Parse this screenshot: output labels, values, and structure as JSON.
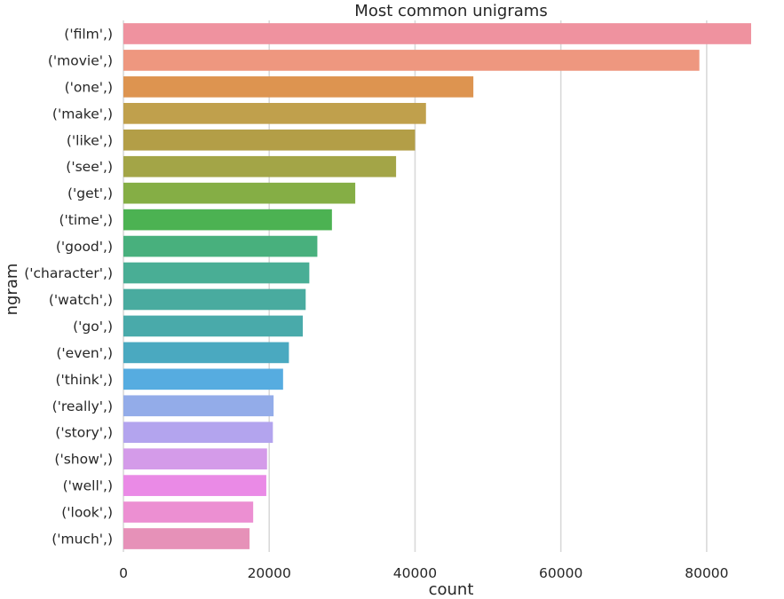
{
  "chart_data": {
    "type": "bar",
    "orientation": "horizontal",
    "title": "Most common unigrams",
    "xlabel": "count",
    "ylabel": "ngram",
    "xlim": [
      0,
      90000
    ],
    "xticks": [
      "0",
      "20000",
      "40000",
      "60000",
      "80000"
    ],
    "grid": true,
    "categories": [
      "('film',)",
      "('movie',)",
      "('one',)",
      "('make',)",
      "('like',)",
      "('see',)",
      "('get',)",
      "('time',)",
      "('good',)",
      "('character',)",
      "('watch',)",
      "('go',)",
      "('even',)",
      "('think',)",
      "('really',)",
      "('story',)",
      "('show',)",
      "('well',)",
      "('look',)",
      "('much',)"
    ],
    "values": [
      86100,
      79000,
      48000,
      41500,
      40000,
      37400,
      31800,
      28600,
      26600,
      25500,
      25000,
      24600,
      22700,
      21900,
      20600,
      20500,
      19700,
      19600,
      17800,
      17300
    ],
    "colors": [
      "#ef929f",
      "#ee977f",
      "#dd9450",
      "#c0a04c",
      "#b39e47",
      "#a3a547",
      "#85ae45",
      "#4cb252",
      "#48b07d",
      "#49ae95",
      "#49ab9f",
      "#49aaaa",
      "#4aa9c0",
      "#56ace0",
      "#93ace9",
      "#b3a4ee",
      "#d49be9",
      "#ea8ae6",
      "#ec8fd2",
      "#e691b8"
    ]
  }
}
